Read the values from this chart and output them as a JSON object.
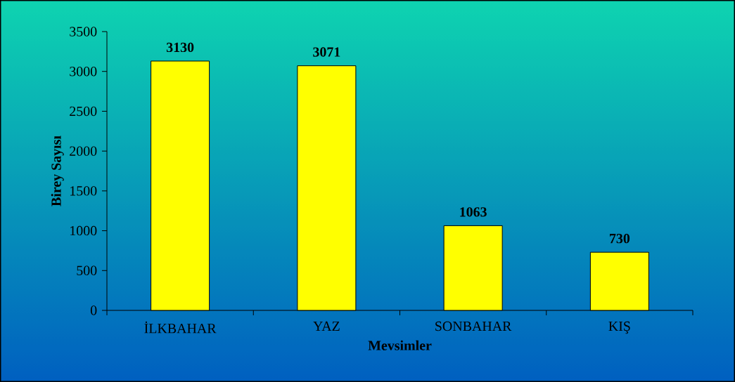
{
  "chart_data": {
    "type": "bar",
    "xlabel": "Mevsimler",
    "ylabel": "Birey Sayısı",
    "categories": [
      "İLKBAHAR",
      "YAZ",
      "SONBAHAR",
      "KIŞ"
    ],
    "values": [
      3130,
      3071,
      1063,
      730
    ],
    "color": "#ffff00",
    "ylim": [
      0,
      3500
    ],
    "yticks": [
      0,
      500,
      1000,
      1500,
      2000,
      2500,
      3000,
      3500
    ],
    "data_labels": true
  }
}
